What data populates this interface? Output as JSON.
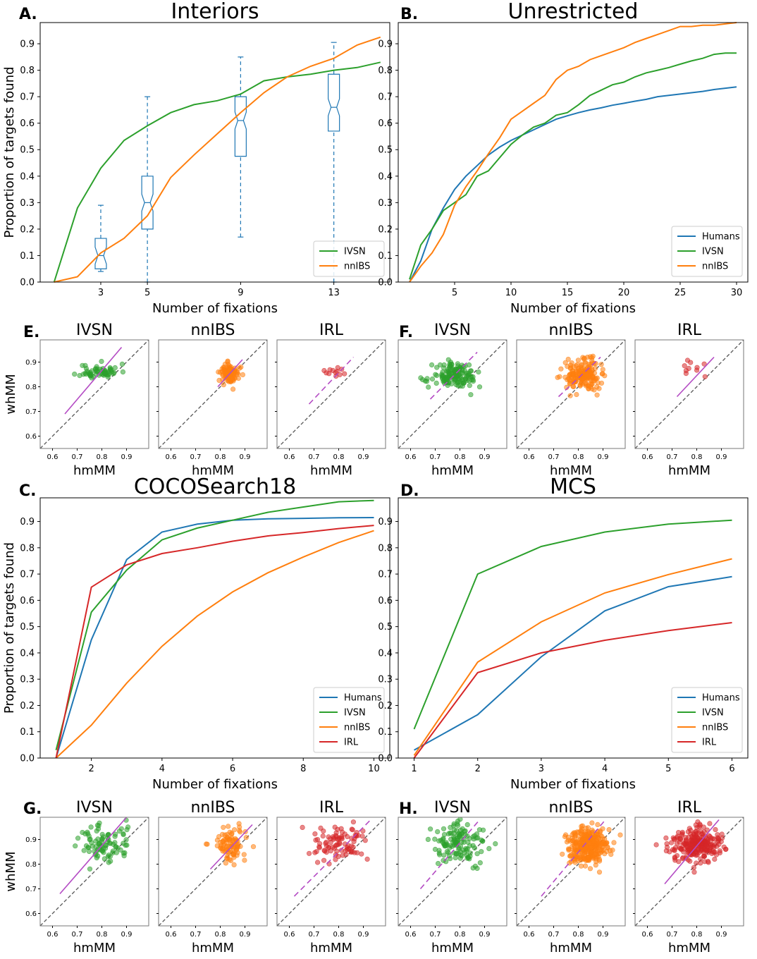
{
  "chart_data": [
    {
      "panel": "A.",
      "type": "line",
      "title": "Interiors",
      "xlabel": "Number of fixations",
      "ylabel": "Proportion of targets found",
      "xlim": [
        0.4,
        15.4
      ],
      "ylim": [
        0,
        0.98
      ],
      "xticks": [
        3,
        5,
        9,
        13
      ],
      "yticks": [
        0.0,
        0.1,
        0.2,
        0.3,
        0.4,
        0.5,
        0.6,
        0.7,
        0.8,
        0.9
      ],
      "legend_position": "bottom-right",
      "series": [
        {
          "name": "IVSN",
          "color": "#2ca02c",
          "x": [
            1,
            2,
            3,
            4,
            5,
            6,
            7,
            8,
            9,
            10,
            11,
            12,
            13,
            14,
            15
          ],
          "values": [
            0.0,
            0.28,
            0.43,
            0.535,
            0.59,
            0.64,
            0.67,
            0.685,
            0.71,
            0.76,
            0.775,
            0.785,
            0.8,
            0.81,
            0.83
          ]
        },
        {
          "name": "nnIBS",
          "color": "#ff7f0e",
          "x": [
            1,
            2,
            3,
            4,
            5,
            6,
            7,
            8,
            9,
            10,
            11,
            12,
            13,
            14,
            15
          ],
          "values": [
            0.0,
            0.02,
            0.11,
            0.165,
            0.25,
            0.395,
            0.48,
            0.56,
            0.64,
            0.715,
            0.775,
            0.815,
            0.845,
            0.895,
            0.925
          ]
        }
      ],
      "boxplots": {
        "color": "#1f77b4",
        "items": [
          {
            "x": 3,
            "whisker_low": 0.04,
            "q1": 0.05,
            "median": 0.1,
            "q3": 0.165,
            "whisker_high": 0.29
          },
          {
            "x": 5,
            "whisker_low": 0.0,
            "q1": 0.2,
            "median": 0.3,
            "q3": 0.4,
            "whisker_high": 0.7
          },
          {
            "x": 9,
            "whisker_low": 0.17,
            "q1": 0.475,
            "median": 0.61,
            "q3": 0.7,
            "whisker_high": 0.85
          },
          {
            "x": 13,
            "whisker_low": 0.0,
            "q1": 0.57,
            "median": 0.66,
            "q3": 0.785,
            "whisker_high": 0.905
          }
        ]
      }
    },
    {
      "panel": "B.",
      "type": "line",
      "title": "Unrestricted",
      "xlabel": "Number of fixations",
      "ylabel": "",
      "xlim": [
        0,
        31
      ],
      "ylim": [
        0,
        0.98
      ],
      "xticks": [
        5,
        10,
        15,
        20,
        25,
        30
      ],
      "yticks": [
        0.0,
        0.1,
        0.2,
        0.3,
        0.4,
        0.5,
        0.6,
        0.7,
        0.8,
        0.9
      ],
      "legend_position": "bottom-right",
      "series": [
        {
          "name": "Humans",
          "color": "#1f77b4",
          "x": [
            1,
            2,
            3,
            4,
            5,
            6,
            7,
            8,
            9,
            10,
            11,
            12,
            13,
            14,
            15,
            16,
            17,
            18,
            19,
            20,
            21,
            22,
            23,
            24,
            25,
            26,
            27,
            28,
            29,
            30
          ],
          "values": [
            0.0,
            0.08,
            0.2,
            0.28,
            0.35,
            0.4,
            0.44,
            0.48,
            0.51,
            0.535,
            0.555,
            0.575,
            0.595,
            0.615,
            0.628,
            0.64,
            0.65,
            0.658,
            0.668,
            0.675,
            0.683,
            0.69,
            0.7,
            0.705,
            0.71,
            0.715,
            0.72,
            0.727,
            0.732,
            0.737
          ]
        },
        {
          "name": "IVSN",
          "color": "#2ca02c",
          "x": [
            1,
            2,
            3,
            4,
            5,
            6,
            7,
            8,
            9,
            10,
            11,
            12,
            13,
            14,
            15,
            16,
            17,
            18,
            19,
            20,
            21,
            22,
            23,
            24,
            25,
            26,
            27,
            28,
            29,
            30
          ],
          "values": [
            0.01,
            0.14,
            0.2,
            0.27,
            0.3,
            0.33,
            0.4,
            0.42,
            0.47,
            0.52,
            0.555,
            0.585,
            0.6,
            0.63,
            0.64,
            0.67,
            0.705,
            0.725,
            0.745,
            0.755,
            0.775,
            0.79,
            0.8,
            0.81,
            0.823,
            0.835,
            0.845,
            0.86,
            0.865,
            0.865
          ]
        },
        {
          "name": "nnIBS",
          "color": "#ff7f0e",
          "x": [
            1,
            2,
            3,
            4,
            5,
            6,
            7,
            8,
            9,
            10,
            11,
            12,
            13,
            14,
            15,
            16,
            17,
            18,
            19,
            20,
            21,
            22,
            23,
            24,
            25,
            26,
            27,
            28,
            29,
            30
          ],
          "values": [
            0.0,
            0.06,
            0.11,
            0.18,
            0.29,
            0.36,
            0.42,
            0.485,
            0.545,
            0.615,
            0.645,
            0.675,
            0.705,
            0.765,
            0.8,
            0.815,
            0.84,
            0.855,
            0.87,
            0.885,
            0.905,
            0.92,
            0.935,
            0.95,
            0.965,
            0.965,
            0.97,
            0.97,
            0.975,
            0.98
          ]
        }
      ]
    },
    {
      "panel": "C.",
      "type": "line",
      "title": "COCOSearch18",
      "xlabel": "Number of fixations",
      "ylabel": "Proportion of targets found",
      "xlim": [
        0.55,
        10.45
      ],
      "ylim": [
        0,
        0.99
      ],
      "xticks": [
        2,
        4,
        6,
        8,
        10
      ],
      "yticks": [
        0.0,
        0.1,
        0.2,
        0.3,
        0.4,
        0.5,
        0.6,
        0.7,
        0.8,
        0.9
      ],
      "legend_position": "bottom-right",
      "series": [
        {
          "name": "Humans",
          "color": "#1f77b4",
          "x": [
            1,
            2,
            3,
            4,
            5,
            6,
            7,
            8,
            9,
            10
          ],
          "values": [
            0.0,
            0.45,
            0.755,
            0.86,
            0.89,
            0.905,
            0.91,
            0.912,
            0.914,
            0.915
          ]
        },
        {
          "name": "IVSN",
          "color": "#2ca02c",
          "x": [
            1,
            2,
            3,
            4,
            5,
            6,
            7,
            8,
            9,
            10
          ],
          "values": [
            0.03,
            0.555,
            0.715,
            0.83,
            0.875,
            0.905,
            0.935,
            0.955,
            0.975,
            0.98
          ]
        },
        {
          "name": "nnIBS",
          "color": "#ff7f0e",
          "x": [
            1,
            2,
            3,
            4,
            5,
            6,
            7,
            8,
            9,
            10
          ],
          "values": [
            0.0,
            0.125,
            0.285,
            0.425,
            0.54,
            0.632,
            0.705,
            0.765,
            0.82,
            0.865
          ]
        },
        {
          "name": "IRL",
          "color": "#d62728",
          "x": [
            1,
            2,
            3,
            4,
            5,
            6,
            7,
            8,
            9,
            10
          ],
          "values": [
            0.0,
            0.65,
            0.735,
            0.778,
            0.8,
            0.825,
            0.845,
            0.858,
            0.873,
            0.885
          ]
        }
      ]
    },
    {
      "panel": "D.",
      "type": "line",
      "title": "MCS",
      "xlabel": "Number of fixations",
      "ylabel": "",
      "xlim": [
        0.75,
        6.25
      ],
      "ylim": [
        0,
        0.99
      ],
      "xticks": [
        1,
        2,
        3,
        4,
        5,
        6
      ],
      "yticks": [
        0.0,
        0.1,
        0.2,
        0.3,
        0.4,
        0.5,
        0.6,
        0.7,
        0.8,
        0.9
      ],
      "legend_position": "bottom-right",
      "series": [
        {
          "name": "Humans",
          "color": "#1f77b4",
          "x": [
            1,
            2,
            3,
            4,
            5,
            6
          ],
          "values": [
            0.03,
            0.165,
            0.385,
            0.56,
            0.652,
            0.69
          ]
        },
        {
          "name": "IVSN",
          "color": "#2ca02c",
          "x": [
            1,
            2,
            3,
            4,
            5,
            6
          ],
          "values": [
            0.11,
            0.7,
            0.805,
            0.86,
            0.89,
            0.905
          ]
        },
        {
          "name": "nnIBS",
          "color": "#ff7f0e",
          "x": [
            1,
            2,
            3,
            4,
            5,
            6
          ],
          "values": [
            0.01,
            0.365,
            0.518,
            0.628,
            0.698,
            0.758
          ]
        },
        {
          "name": "IRL",
          "color": "#d62728",
          "x": [
            1,
            2,
            3,
            4,
            5,
            6
          ],
          "values": [
            0.0,
            0.325,
            0.4,
            0.448,
            0.485,
            0.515
          ]
        }
      ]
    },
    {
      "panel": "E.",
      "type": "scatter",
      "xlabel": "hmMM",
      "ylabel": "whMM",
      "xlim": [
        0.55,
        0.99
      ],
      "ylim": [
        0.55,
        0.99
      ],
      "xticks": [
        0.6,
        0.7,
        0.8,
        0.9
      ],
      "yticks": [
        0.6,
        0.7,
        0.8,
        0.9
      ],
      "subplots": [
        {
          "title": "IVSN",
          "color": "#2ca02c",
          "center": [
            0.79,
            0.862
          ],
          "spread": [
            0.04,
            0.015
          ],
          "n": 60,
          "seed": 11,
          "fit": {
            "x": [
              0.65,
              0.88
            ],
            "y": [
              0.69,
              0.96
            ],
            "dashed": false
          }
        },
        {
          "title": "nnIBS",
          "color": "#ff7f0e",
          "center": [
            0.84,
            0.852
          ],
          "spread": [
            0.018,
            0.02
          ],
          "n": 110,
          "seed": 12,
          "fit": {
            "x": [
              0.79,
              0.89
            ],
            "y": [
              0.8,
              0.91
            ],
            "dashed": false
          }
        },
        {
          "title": "IRL",
          "color": "#d62728",
          "center": [
            0.79,
            0.86
          ],
          "spread": [
            0.03,
            0.012
          ],
          "n": 12,
          "seed": 13,
          "fit": {
            "x": [
              0.68,
              0.86
            ],
            "y": [
              0.73,
              0.92
            ],
            "dashed": true
          }
        }
      ]
    },
    {
      "panel": "F.",
      "type": "scatter",
      "xlabel": "hmMM",
      "ylabel": "",
      "xlim": [
        0.55,
        0.99
      ],
      "ylim": [
        0.55,
        0.99
      ],
      "xticks": [
        0.6,
        0.7,
        0.8,
        0.9
      ],
      "yticks": [],
      "subplots": [
        {
          "title": "IVSN",
          "color": "#2ca02c",
          "center": [
            0.78,
            0.845
          ],
          "spread": [
            0.045,
            0.025
          ],
          "n": 150,
          "seed": 21,
          "fit": {
            "x": [
              0.68,
              0.87
            ],
            "y": [
              0.75,
              0.94
            ],
            "dashed": true
          }
        },
        {
          "title": "nnIBS",
          "color": "#ff7f0e",
          "center": [
            0.82,
            0.848
          ],
          "spread": [
            0.035,
            0.03
          ],
          "n": 180,
          "seed": 22,
          "fit": {
            "x": [
              0.72,
              0.89
            ],
            "y": [
              0.76,
              0.92
            ],
            "dashed": true
          }
        },
        {
          "title": "IRL",
          "color": "#d62728",
          "center": [
            0.79,
            0.875
          ],
          "spread": [
            0.03,
            0.02
          ],
          "n": 10,
          "seed": 23,
          "fit": {
            "x": [
              0.72,
              0.87
            ],
            "y": [
              0.76,
              0.92
            ],
            "dashed": false
          }
        }
      ]
    },
    {
      "panel": "G.",
      "type": "scatter",
      "xlabel": "hmMM",
      "ylabel": "whMM",
      "xlim": [
        0.55,
        0.99
      ],
      "ylim": [
        0.55,
        0.99
      ],
      "xticks": [
        0.6,
        0.7,
        0.8,
        0.9
      ],
      "yticks": [
        0.6,
        0.7,
        0.8,
        0.9
      ],
      "subplots": [
        {
          "title": "IVSN",
          "color": "#2ca02c",
          "center": [
            0.81,
            0.88
          ],
          "spread": [
            0.055,
            0.04
          ],
          "n": 90,
          "seed": 31,
          "fit": {
            "x": [
              0.63,
              0.9
            ],
            "y": [
              0.68,
              0.99
            ],
            "dashed": false
          }
        },
        {
          "title": "nnIBS",
          "color": "#ff7f0e",
          "center": [
            0.84,
            0.882
          ],
          "spread": [
            0.035,
            0.035
          ],
          "n": 90,
          "seed": 32,
          "fit": {
            "x": [
              0.76,
              0.93
            ],
            "y": [
              0.78,
              0.96
            ],
            "dashed": false
          }
        },
        {
          "title": "IRL",
          "color": "#d62728",
          "center": [
            0.8,
            0.88
          ],
          "spread": [
            0.05,
            0.035
          ],
          "n": 90,
          "seed": 33,
          "fit": {
            "x": [
              0.62,
              0.93
            ],
            "y": [
              0.67,
              0.98
            ],
            "dashed": true
          }
        }
      ]
    },
    {
      "panel": "H.",
      "type": "scatter",
      "xlabel": "hmMM",
      "ylabel": "",
      "xlim": [
        0.55,
        0.99
      ],
      "ylim": [
        0.55,
        0.99
      ],
      "xticks": [
        0.6,
        0.7,
        0.8,
        0.9
      ],
      "yticks": [],
      "subplots": [
        {
          "title": "IVSN",
          "color": "#2ca02c",
          "center": [
            0.8,
            0.885
          ],
          "spread": [
            0.055,
            0.04
          ],
          "n": 130,
          "seed": 41,
          "fit": {
            "x": [
              0.64,
              0.88
            ],
            "y": [
              0.7,
              0.98
            ],
            "dashed": true
          }
        },
        {
          "title": "nnIBS",
          "color": "#ff7f0e",
          "center": [
            0.84,
            0.875
          ],
          "spread": [
            0.04,
            0.04
          ],
          "n": 300,
          "seed": 42,
          "fit": {
            "x": [
              0.65,
              0.91
            ],
            "y": [
              0.67,
              0.98
            ],
            "dashed": true
          }
        },
        {
          "title": "IRL",
          "color": "#d62728",
          "center": [
            0.8,
            0.88
          ],
          "spread": [
            0.055,
            0.035
          ],
          "n": 250,
          "seed": 43,
          "fit": {
            "x": [
              0.67,
              0.89
            ],
            "y": [
              0.72,
              0.98
            ],
            "dashed": false
          }
        }
      ]
    }
  ],
  "styles": {
    "grid": false,
    "diagonal_color": "#555555",
    "fit_color": "#b44bc4"
  }
}
